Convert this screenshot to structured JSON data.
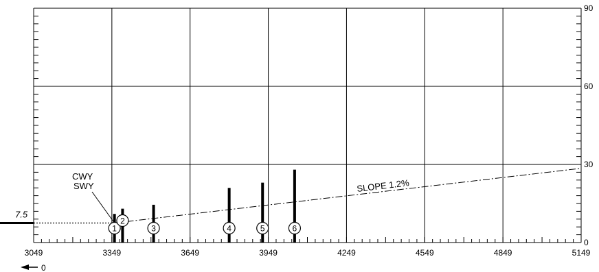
{
  "chart_data": {
    "type": "obstacle-profile",
    "x_axis": {
      "range": [
        3049,
        5149
      ],
      "tick_labels": [
        "3049",
        "3349",
        "3649",
        "3949",
        "4249",
        "4549",
        "4849",
        "5149"
      ],
      "origin_label": "0"
    },
    "y_axis": {
      "range": [
        0,
        90
      ],
      "tick_labels": [
        "0",
        "30",
        "60",
        "90"
      ]
    },
    "grid": true,
    "elevation_label": "7.5",
    "elevation_value": 7.5,
    "annotations": {
      "cwy": "CWY",
      "swy": "SWY",
      "slope": "SLOPE 1.2%"
    },
    "slope_line": {
      "start": {
        "x": 3359,
        "y": 7.5
      },
      "end": {
        "x": 5149,
        "y": 28.5
      }
    },
    "obstacles": [
      {
        "label": "1",
        "x": 3359,
        "height": 11
      },
      {
        "label": "2",
        "x": 3390,
        "height": 13
      },
      {
        "label": "3",
        "x": 3509,
        "height": 14.5
      },
      {
        "label": "4",
        "x": 3799,
        "height": 21
      },
      {
        "label": "5",
        "x": 3927,
        "height": 23
      },
      {
        "label": "6",
        "x": 4050,
        "height": 28
      }
    ]
  }
}
